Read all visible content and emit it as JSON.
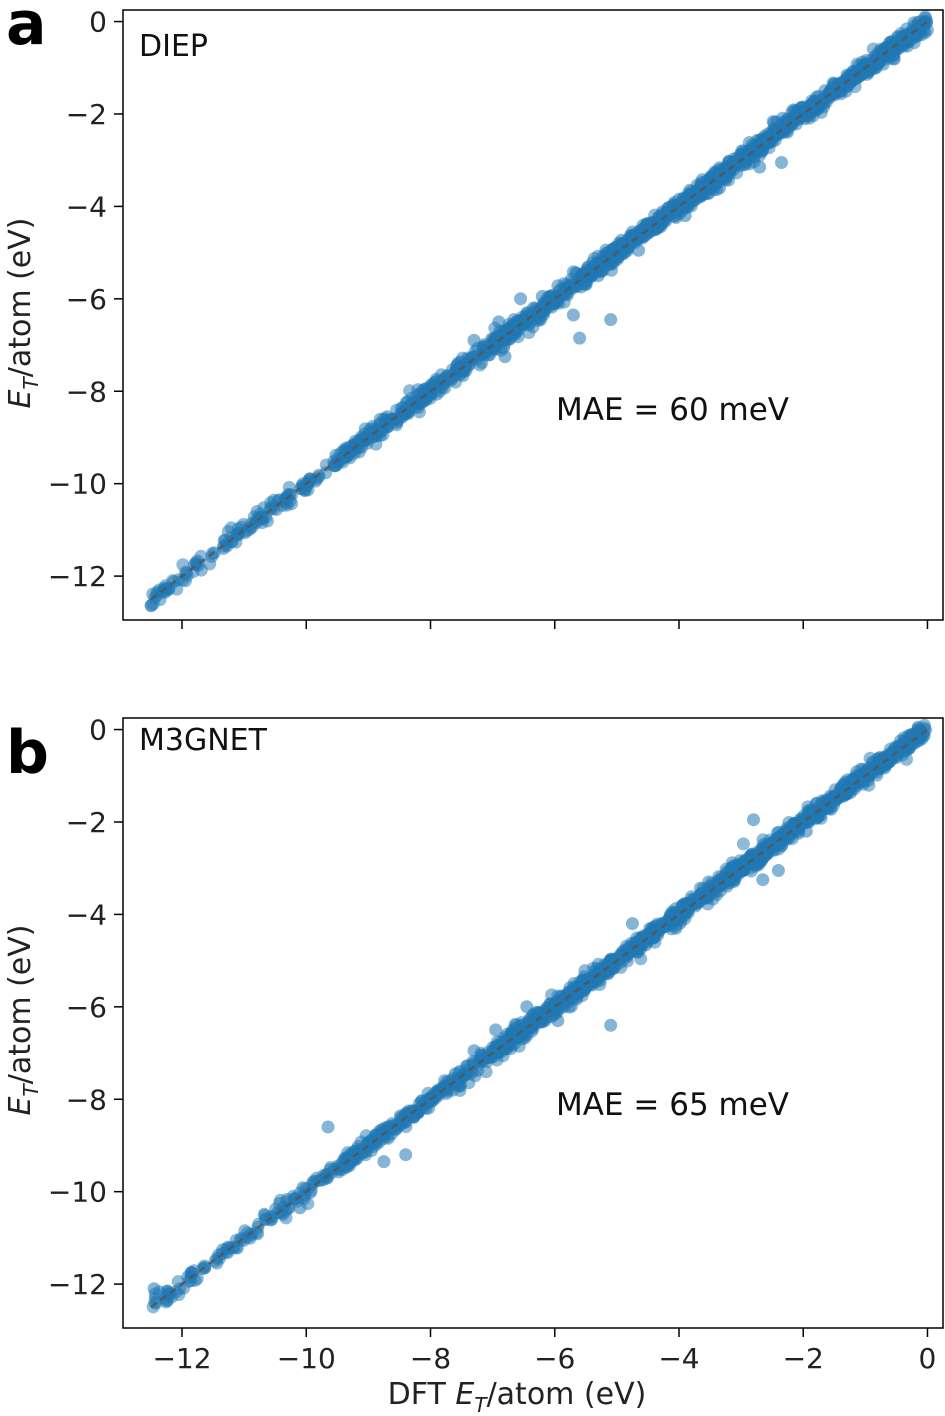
{
  "figure": {
    "x_axis_label": {
      "prefix": "DFT ",
      "sym": "E",
      "sub": "T",
      "suffix": "/atom (eV)"
    }
  },
  "colors": {
    "points": "#1f77b4",
    "parity_line": "#555555",
    "frame": "#000000"
  },
  "chart_data": [
    {
      "type": "scatter",
      "panel_letter": "a",
      "title": "DIEP",
      "annotation": "MAE = 60 meV",
      "ylabel": {
        "sym": "E",
        "sub": "T",
        "suffix": "/atom (eV)"
      },
      "xlim": [
        -13.0,
        0.0
      ],
      "ylim": [
        -13.0,
        0.0
      ],
      "x_ticks": [
        -12,
        -10,
        -8,
        -6,
        -4,
        -2,
        0
      ],
      "x_tick_labels_shown": false,
      "y_ticks": [
        0,
        -2,
        -4,
        -6,
        -8,
        -10,
        -12
      ],
      "y_tick_labels": [
        "0",
        "−2",
        "−4",
        "−6",
        "−8",
        "−10",
        "−12"
      ],
      "parity_line": [
        [
          -12.5,
          -12.5
        ],
        [
          0,
          0
        ]
      ],
      "mae_ev": 0.06,
      "outliers": [
        [
          -12.4,
          -12.35
        ],
        [
          -11.8,
          -11.75
        ],
        [
          -9.3,
          -9.2
        ],
        [
          -7.3,
          -6.9
        ],
        [
          -6.9,
          -6.5
        ],
        [
          -6.55,
          -6.0
        ],
        [
          -6.2,
          -5.95
        ],
        [
          -5.7,
          -6.35
        ],
        [
          -5.6,
          -6.85
        ],
        [
          -5.1,
          -6.45
        ],
        [
          -4.65,
          -4.95
        ],
        [
          -3.9,
          -4.2
        ],
        [
          -3.35,
          -3.6
        ],
        [
          -2.7,
          -3.15
        ],
        [
          -2.35,
          -3.05
        ],
        [
          -5.3,
          -5.5
        ],
        [
          -8.7,
          -8.55
        ],
        [
          -8.0,
          -8.05
        ],
        [
          -6.8,
          -7.25
        ]
      ]
    },
    {
      "type": "scatter",
      "panel_letter": "b",
      "title": "M3GNET",
      "annotation": "MAE = 65 meV",
      "ylabel": {
        "sym": "E",
        "sub": "T",
        "suffix": "/atom (eV)"
      },
      "xlim": [
        -13.0,
        0.0
      ],
      "ylim": [
        -13.0,
        0.0
      ],
      "x_ticks": [
        -12,
        -10,
        -8,
        -6,
        -4,
        -2,
        0
      ],
      "x_tick_labels": [
        "−12",
        "−10",
        "−8",
        "−6",
        "−4",
        "−2",
        "0"
      ],
      "x_tick_labels_shown": true,
      "y_ticks": [
        0,
        -2,
        -4,
        -6,
        -8,
        -10,
        -12
      ],
      "y_tick_labels": [
        "0",
        "−2",
        "−4",
        "−6",
        "−8",
        "−10",
        "−12"
      ],
      "parity_line": [
        [
          -12.5,
          -12.5
        ],
        [
          0,
          0
        ]
      ],
      "mae_ev": 0.065,
      "outliers": [
        [
          -12.45,
          -12.1
        ],
        [
          -11.85,
          -11.75
        ],
        [
          -9.65,
          -8.6
        ],
        [
          -8.75,
          -9.35
        ],
        [
          -8.4,
          -9.2
        ],
        [
          -7.3,
          -6.95
        ],
        [
          -6.95,
          -6.5
        ],
        [
          -6.45,
          -6.0
        ],
        [
          -5.95,
          -6.3
        ],
        [
          -5.1,
          -6.4
        ],
        [
          -4.75,
          -4.2
        ],
        [
          -4.05,
          -4.3
        ],
        [
          -2.8,
          -1.95
        ],
        [
          -2.65,
          -3.25
        ],
        [
          -2.4,
          -3.05
        ],
        [
          -1.95,
          -2.2
        ],
        [
          -0.15,
          0.05
        ],
        [
          -10.1,
          -10.35
        ],
        [
          -7.6,
          -7.45
        ]
      ]
    }
  ]
}
